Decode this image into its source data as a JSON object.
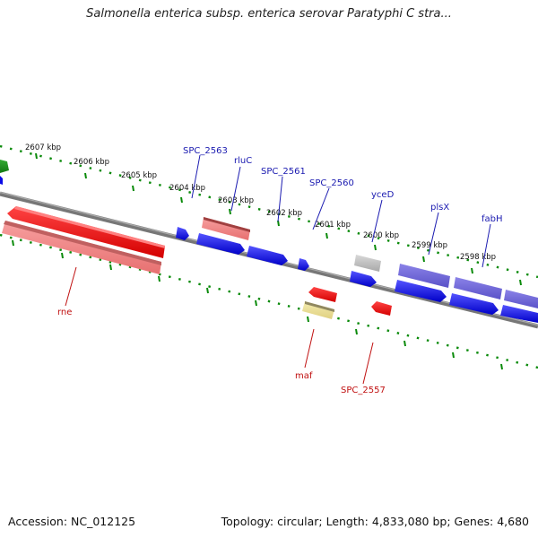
{
  "title": "Salmonella enterica subsp. enterica serovar Paratyphi C stra...",
  "footer": {
    "accession": "Accession: NC_012125",
    "topology": "Topology: circular; Length: 4,833,080 bp; Genes: 4,680"
  },
  "ticks": [
    "2607 kbp",
    "2606 kbp",
    "2605 kbp",
    "2604 kbp",
    "2603 kbp",
    "2602 kbp",
    "2601 kbp",
    "2600 kbp",
    "2599 kbp",
    "2598 kbp"
  ],
  "labels": {
    "top": [
      "SPC_2563",
      "rluC",
      "SPC_2561",
      "SPC_2560",
      "yceD",
      "plsX",
      "fabH"
    ],
    "bottom": [
      "rne",
      "maf",
      "SPC_2557"
    ]
  },
  "colors": {
    "forward_gene": "#0a0ae6",
    "reverse_gene": "#e60000",
    "label_top": "#1a1ab0",
    "label_bottom": "#c01010",
    "tick_marks": "#0a8a0a"
  }
}
